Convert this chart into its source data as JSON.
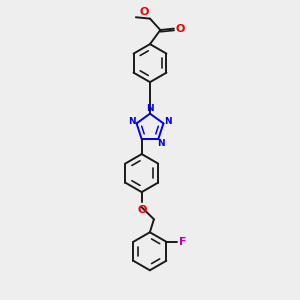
{
  "bg_color": "#eeeeee",
  "bond_color": "#1a1a1a",
  "N_color": "#0000ee",
  "O_color": "#ee0000",
  "F_color": "#bb00bb",
  "lw": 1.4,
  "lw_inner": 1.1,
  "figsize": [
    3.0,
    3.0
  ],
  "dpi": 100,
  "xlim": [
    -2.5,
    2.5
  ],
  "ylim": [
    -5.5,
    5.5
  ]
}
